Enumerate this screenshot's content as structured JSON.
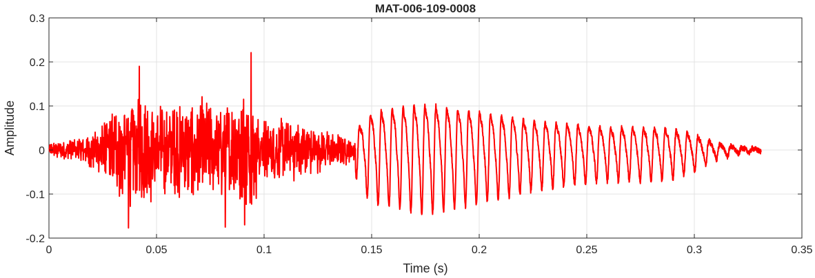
{
  "chart_data": {
    "type": "line",
    "title": "MAT-006-109-0008",
    "xlabel": "Time (s)",
    "ylabel": "Amplitude",
    "xlim": [
      0,
      0.35
    ],
    "ylim": [
      -0.2,
      0.3
    ],
    "x_ticks": [
      0,
      0.05,
      0.1,
      0.15,
      0.2,
      0.25,
      0.3,
      0.35
    ],
    "x_tick_labels": [
      "0",
      "0.05",
      "0.1",
      "0.15",
      "0.2",
      "0.25",
      "0.3",
      "0.35"
    ],
    "y_ticks": [
      -0.2,
      -0.1,
      0,
      0.1,
      0.2,
      0.3
    ],
    "y_tick_labels": [
      "-0.2",
      "-0.1",
      "0",
      "0.1",
      "0.2",
      "0.3"
    ],
    "grid": true,
    "series_color": "#ff0000",
    "signal": {
      "t_start": 0,
      "t_end": 0.331,
      "envelope": [
        {
          "t": 0.0,
          "amp": 0.02
        },
        {
          "t": 0.01,
          "amp": 0.03
        },
        {
          "t": 0.02,
          "amp": 0.05
        },
        {
          "t": 0.03,
          "amp": 0.12
        },
        {
          "t": 0.04,
          "amp": 0.17
        },
        {
          "t": 0.05,
          "amp": 0.13
        },
        {
          "t": 0.06,
          "amp": 0.15
        },
        {
          "t": 0.07,
          "amp": 0.14
        },
        {
          "t": 0.08,
          "amp": 0.13
        },
        {
          "t": 0.09,
          "amp": 0.17
        },
        {
          "t": 0.1,
          "amp": 0.1
        },
        {
          "t": 0.11,
          "amp": 0.09
        },
        {
          "t": 0.12,
          "amp": 0.08
        },
        {
          "t": 0.13,
          "amp": 0.05
        },
        {
          "t": 0.142,
          "amp": 0.035
        },
        {
          "t": 0.143,
          "amp": 0.06
        },
        {
          "t": 0.15,
          "amp": 0.11
        },
        {
          "t": 0.16,
          "amp": 0.12
        },
        {
          "t": 0.17,
          "amp": 0.13
        },
        {
          "t": 0.18,
          "amp": 0.13
        },
        {
          "t": 0.19,
          "amp": 0.12
        },
        {
          "t": 0.2,
          "amp": 0.11
        },
        {
          "t": 0.21,
          "amp": 0.1
        },
        {
          "t": 0.22,
          "amp": 0.09
        },
        {
          "t": 0.23,
          "amp": 0.08
        },
        {
          "t": 0.24,
          "amp": 0.075
        },
        {
          "t": 0.25,
          "amp": 0.07
        },
        {
          "t": 0.26,
          "amp": 0.065
        },
        {
          "t": 0.27,
          "amp": 0.065
        },
        {
          "t": 0.28,
          "amp": 0.065
        },
        {
          "t": 0.29,
          "amp": 0.06
        },
        {
          "t": 0.3,
          "amp": 0.045
        },
        {
          "t": 0.31,
          "amp": 0.02
        },
        {
          "t": 0.32,
          "amp": 0.008
        },
        {
          "t": 0.331,
          "amp": 0.003
        }
      ],
      "peaks": [
        {
          "t": 0.037,
          "y": -0.177
        },
        {
          "t": 0.042,
          "y": 0.19
        },
        {
          "t": 0.094,
          "y": 0.221
        },
        {
          "t": 0.091,
          "y": -0.17
        },
        {
          "t": 0.082,
          "y": -0.175
        }
      ]
    }
  }
}
